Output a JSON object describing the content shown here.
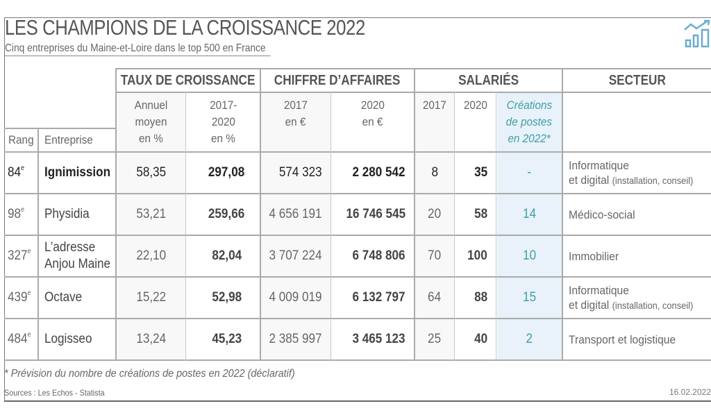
{
  "header": {
    "title": "LES CHAMPIONS DE LA CROISSANCE 2022",
    "subtitle": "Cinq entreprises du Maine-et-Loire dans le top 500 en France",
    "logo_icon": "chart-growth-icon"
  },
  "colors": {
    "accent": "#3aa1a6",
    "highlight_bg": "#e9f1fa",
    "grid": "#aaaaaa"
  },
  "table": {
    "groups": {
      "taux": "TAUX DE CROISSANCE",
      "chiffre": "CHIFFRE D’AFFAIRES",
      "salaries": "SALARIÉS",
      "secteur": "SECTEUR"
    },
    "columns": {
      "rang": "Rang",
      "entreprise": "Entreprise",
      "annuel": [
        "Annuel",
        "moyen",
        "en %"
      ],
      "periode": [
        "2017-",
        "2020",
        "en %"
      ],
      "ca2017": [
        "2017",
        "en €"
      ],
      "ca2020": [
        "2020",
        "en €"
      ],
      "sal2017": "2017",
      "sal2020": "2020",
      "creations": [
        "Créations",
        "de postes",
        "en 2022*"
      ]
    },
    "rows": [
      {
        "rang": "84",
        "suffix": "e",
        "entreprise": [
          "Ignimission"
        ],
        "annuel": "58,35",
        "periode": "297,08",
        "ca2017": "574 323",
        "ca2020": "2 280 542",
        "sal2017": "8",
        "sal2020": "35",
        "creations": "-",
        "secteur": "Informatique",
        "secteur2": "et digital",
        "secteur_detail": "(installation, conseil)"
      },
      {
        "rang": "98",
        "suffix": "e",
        "entreprise": [
          "Physidia"
        ],
        "annuel": "53,21",
        "periode": "259,66",
        "ca2017": "4 656 191",
        "ca2020": "16 746 545",
        "sal2017": "20",
        "sal2020": "58",
        "creations": "14",
        "secteur": "Médico-social"
      },
      {
        "rang": "327",
        "suffix": "e",
        "entreprise": [
          "L’adresse",
          "Anjou Maine"
        ],
        "annuel": "22,10",
        "periode": "82,04",
        "ca2017": "3 707 224",
        "ca2020": "6 748 806",
        "sal2017": "70",
        "sal2020": "100",
        "creations": "10",
        "secteur": "Immobilier"
      },
      {
        "rang": "439",
        "suffix": "e",
        "entreprise": [
          "Octave"
        ],
        "annuel": "15,22",
        "periode": "52,98",
        "ca2017": "4 009 019",
        "ca2020": "6 132 797",
        "sal2017": "64",
        "sal2020": "88",
        "creations": "15",
        "secteur": "Informatique",
        "secteur2": "et digital",
        "secteur_detail": "(installation, conseil)"
      },
      {
        "rang": "484",
        "suffix": "e",
        "entreprise": [
          "Logisseo"
        ],
        "annuel": "13,24",
        "periode": "45,23",
        "ca2017": "2 385 997",
        "ca2020": "3 465 123",
        "sal2017": "25",
        "sal2020": "40",
        "creations": "2",
        "secteur": "Transport et logistique"
      }
    ]
  },
  "footer": {
    "note": "* Prévision du nombre de créations de postes en 2022 (déclaratif)",
    "sources": "Sources : Les Echos - Statista",
    "date": "16.02.2022"
  }
}
